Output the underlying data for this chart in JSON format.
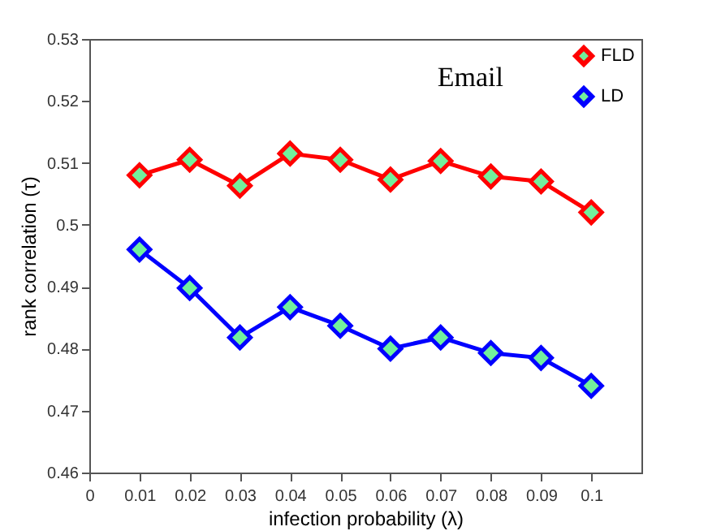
{
  "chart_data": {
    "type": "line",
    "title": "Email",
    "xlabel": "infection probability (λ)",
    "ylabel": "rank correlation (τ)",
    "x": [
      0.01,
      0.02,
      0.03,
      0.04,
      0.05,
      0.06,
      0.07,
      0.08,
      0.09,
      0.1
    ],
    "series": [
      {
        "name": "FLD",
        "color": "#ff0000",
        "values": [
          0.508,
          0.5105,
          0.5063,
          0.5115,
          0.5105,
          0.5073,
          0.5103,
          0.5078,
          0.507,
          0.502
        ]
      },
      {
        "name": "LD",
        "color": "#0000ff",
        "values": [
          0.496,
          0.4898,
          0.4818,
          0.4867,
          0.4837,
          0.48,
          0.4818,
          0.4793,
          0.4785,
          0.474
        ]
      }
    ],
    "xlim": [
      0,
      0.11
    ],
    "xticks": [
      0,
      0.01,
      0.02,
      0.03,
      0.04,
      0.05,
      0.06,
      0.07,
      0.08,
      0.09,
      0.1
    ],
    "ylim": [
      0.46,
      0.53
    ],
    "yticks": [
      0.46,
      0.47,
      0.48,
      0.49,
      0.5,
      0.51,
      0.52,
      0.53
    ],
    "legend": "top right",
    "marker": "diamond",
    "line_style": "solid",
    "grid": false
  }
}
